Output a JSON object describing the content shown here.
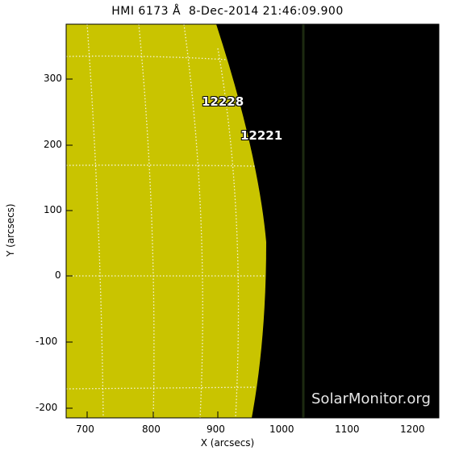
{
  "title": "HMI 6173 Å  8-Dec-2014 21:46:09.900",
  "xlabel": "X (arcsecs)",
  "ylabel": "Y (arcsecs)",
  "watermark": "SolarMonitor.org",
  "x_ticks": [
    "700",
    "800",
    "900",
    "1000",
    "1100",
    "1200"
  ],
  "y_ticks": [
    "300",
    "200",
    "100",
    "0",
    "-100",
    "-200"
  ],
  "active_regions": [
    {
      "label": "12228",
      "x_arcsec": 890,
      "y_arcsec": 265
    },
    {
      "label": "12221",
      "x_arcsec": 945,
      "y_arcsec": 210
    }
  ],
  "colors": {
    "disk": "#c9c400",
    "space": "#000000",
    "grid": "#ffffff"
  }
}
